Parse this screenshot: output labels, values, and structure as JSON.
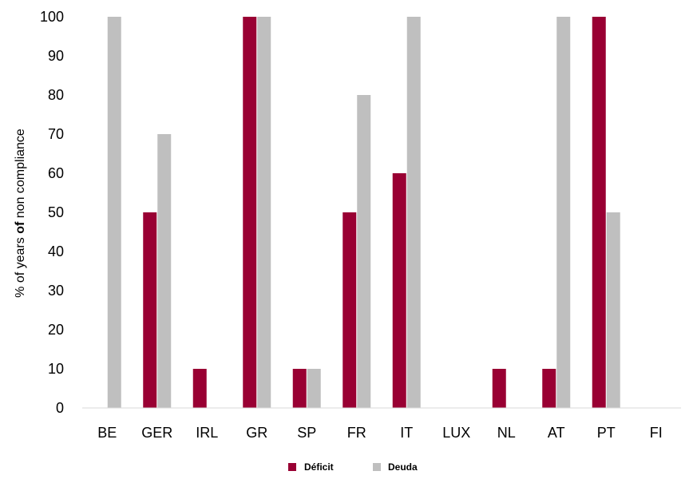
{
  "chart_data": {
    "type": "bar",
    "categories": [
      "BE",
      "GER",
      "IRL",
      "GR",
      "SP",
      "FR",
      "IT",
      "LUX",
      "NL",
      "AT",
      "PT",
      "FI"
    ],
    "series": [
      {
        "name": "Déficit",
        "color": "#990033",
        "values": [
          0,
          50,
          10,
          100,
          10,
          50,
          60,
          0,
          10,
          10,
          100,
          0
        ]
      },
      {
        "name": "Deuda",
        "color": "#BFBFBF",
        "values": [
          100,
          70,
          0,
          100,
          10,
          80,
          100,
          0,
          0,
          100,
          50,
          0
        ]
      }
    ],
    "ylabel_parts": [
      "% of years ",
      "of",
      " non compliance"
    ],
    "ylim": [
      0,
      100
    ],
    "yticks": [
      0,
      10,
      20,
      30,
      40,
      50,
      60,
      70,
      80,
      90,
      100
    ],
    "grid": false,
    "legend_position": "bottom"
  }
}
